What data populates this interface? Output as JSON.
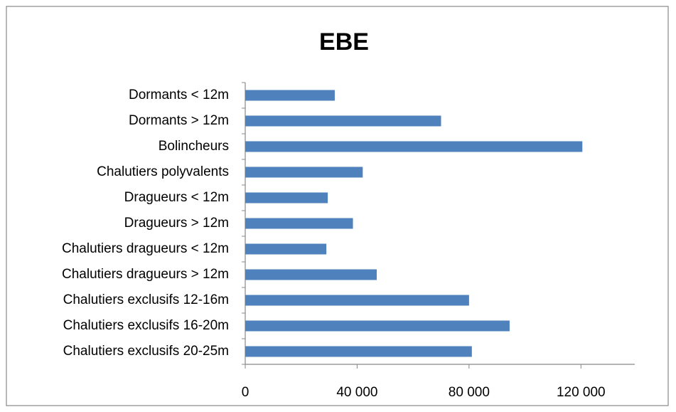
{
  "chart_data": {
    "type": "barh",
    "title": "EBE",
    "categories": [
      "Dormants < 12m",
      "Dormants > 12m",
      "Bolincheurs",
      "Chalutiers polyvalents",
      "Dragueurs < 12m",
      "Dragueurs > 12m",
      "Chalutiers dragueurs < 12m",
      "Chalutiers dragueurs > 12m",
      "Chalutiers exclusifs 12-16m",
      "Chalutiers exclusifs 16-20m",
      "Chalutiers exclusifs 20-25m"
    ],
    "values": [
      32000,
      70000,
      120500,
      42000,
      29500,
      38500,
      29000,
      47000,
      80000,
      94500,
      81000
    ],
    "color": "#4f81bd",
    "xlim": [
      0,
      140000
    ],
    "xticks": [
      0,
      {
        "value": 40000,
        "label": "40 000"
      },
      {
        "value": 80000,
        "label": "80 000"
      },
      {
        "value": 120000,
        "label": "120 000"
      }
    ],
    "grid": false
  }
}
